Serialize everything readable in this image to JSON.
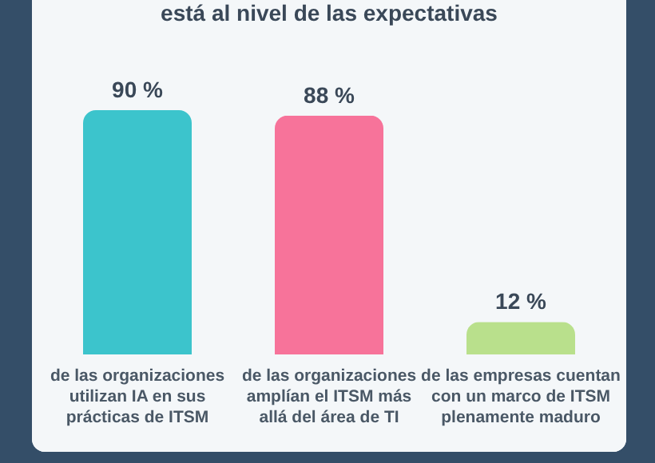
{
  "chart_data": {
    "type": "bar",
    "title": "está al nivel de las expectativas",
    "categories": [
      "de las organizaciones\nutilizan IA en sus\nprácticas de ITSM",
      "de las organizaciones\namplían el ITSM más\nallá del área de TI",
      "de las empresas cuentan\ncon un marco de ITSM\nplenamente maduro"
    ],
    "values": [
      90,
      88,
      12
    ],
    "colors": [
      "#3cc4cc",
      "#f7739a",
      "#b9e08c"
    ],
    "value_labels": [
      "90 %",
      "88 %",
      "12 %"
    ]
  }
}
